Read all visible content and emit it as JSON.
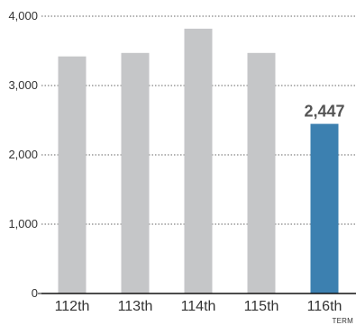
{
  "chart_data": {
    "type": "bar",
    "categories": [
      "112th",
      "113th",
      "114th",
      "115th",
      "116th"
    ],
    "values": [
      3420,
      3470,
      3820,
      3470,
      2447
    ],
    "ylim": [
      0,
      4000
    ],
    "yticks": [
      0,
      1000,
      2000,
      3000,
      4000
    ],
    "ytick_labels": [
      "0",
      "1,000",
      "2,000",
      "3,000",
      "4,000"
    ],
    "grid": true,
    "xlabel": "TERM",
    "highlight": {
      "index": 4,
      "label": "2,447",
      "color": "#3c80b0"
    },
    "colors": {
      "default_bar": "#c5c6c8",
      "highlight_bar": "#3c80b0",
      "gridline": "#666666",
      "axis": "#111111",
      "text": "#333333",
      "data_label": "#555555"
    }
  }
}
